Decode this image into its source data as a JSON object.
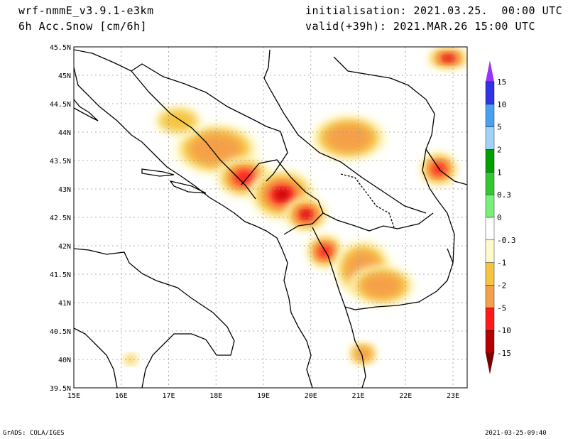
{
  "header": {
    "model": "wrf-nmmE_v3.9.1-e3km",
    "field": "6h Acc.Snow [cm/6h]",
    "init": "initialisation: 2021.03.25.  00:00 UTC",
    "valid": "valid(+39h): 2021.MAR.26 15:00 UTC"
  },
  "axes": {
    "lon_min": 15.0,
    "lon_max": 23.3,
    "lat_min": 39.5,
    "lat_max": 45.5,
    "x_ticks": [
      "15E",
      "16E",
      "17E",
      "18E",
      "19E",
      "20E",
      "21E",
      "22E",
      "23E"
    ],
    "x_values": [
      15,
      16,
      17,
      18,
      19,
      20,
      21,
      22,
      23
    ],
    "y_ticks": [
      "39.5N",
      "40N",
      "40.5N",
      "41N",
      "41.5N",
      "42N",
      "42.5N",
      "43N",
      "43.5N",
      "44N",
      "44.5N",
      "45N",
      "45.5N"
    ],
    "y_values": [
      39.5,
      40,
      40.5,
      41,
      41.5,
      42,
      42.5,
      43,
      43.5,
      44,
      44.5,
      45,
      45.5
    ]
  },
  "legend": {
    "labels": [
      "15",
      "10",
      "5",
      "2",
      "1",
      "0.3",
      "0",
      "-0.3",
      "-1",
      "-2",
      "-5",
      "-10",
      "-15"
    ],
    "colors": [
      "#9b30ff",
      "#3232e6",
      "#4aa0f0",
      "#a0d2fa",
      "#00a000",
      "#32c832",
      "#78f078",
      "#ffffff",
      "#fffacd",
      "#f5c542",
      "#f5a04a",
      "#ff1a1a",
      "#b40000",
      "#7a0000"
    ]
  },
  "footer": {
    "left": "GrADS: COLA/IGES",
    "right": "2021-03-25-09:40"
  },
  "snow_areas": [
    {
      "lon": 18.0,
      "lat": 43.7,
      "rx": 0.9,
      "ry": 0.45,
      "level": 2
    },
    {
      "lon": 18.6,
      "lat": 43.2,
      "rx": 0.6,
      "ry": 0.35,
      "level": 3
    },
    {
      "lon": 19.4,
      "lat": 42.9,
      "rx": 0.7,
      "ry": 0.45,
      "level": 4
    },
    {
      "lon": 19.9,
      "lat": 42.55,
      "rx": 0.45,
      "ry": 0.3,
      "level": 4
    },
    {
      "lon": 20.3,
      "lat": 41.9,
      "rx": 0.4,
      "ry": 0.3,
      "level": 3
    },
    {
      "lon": 21.1,
      "lat": 41.6,
      "rx": 0.6,
      "ry": 0.5,
      "level": 2
    },
    {
      "lon": 21.5,
      "lat": 41.3,
      "rx": 0.7,
      "ry": 0.35,
      "level": 2
    },
    {
      "lon": 22.9,
      "lat": 45.3,
      "rx": 0.45,
      "ry": 0.2,
      "level": 4
    },
    {
      "lon": 22.7,
      "lat": 43.35,
      "rx": 0.4,
      "ry": 0.3,
      "level": 3
    },
    {
      "lon": 20.8,
      "lat": 43.9,
      "rx": 0.8,
      "ry": 0.4,
      "level": 2
    },
    {
      "lon": 17.2,
      "lat": 44.2,
      "rx": 0.5,
      "ry": 0.25,
      "level": 1
    },
    {
      "lon": 21.1,
      "lat": 40.1,
      "rx": 0.3,
      "ry": 0.2,
      "level": 2
    },
    {
      "lon": 16.2,
      "lat": 40.0,
      "rx": 0.15,
      "ry": 0.1,
      "level": 1
    }
  ]
}
